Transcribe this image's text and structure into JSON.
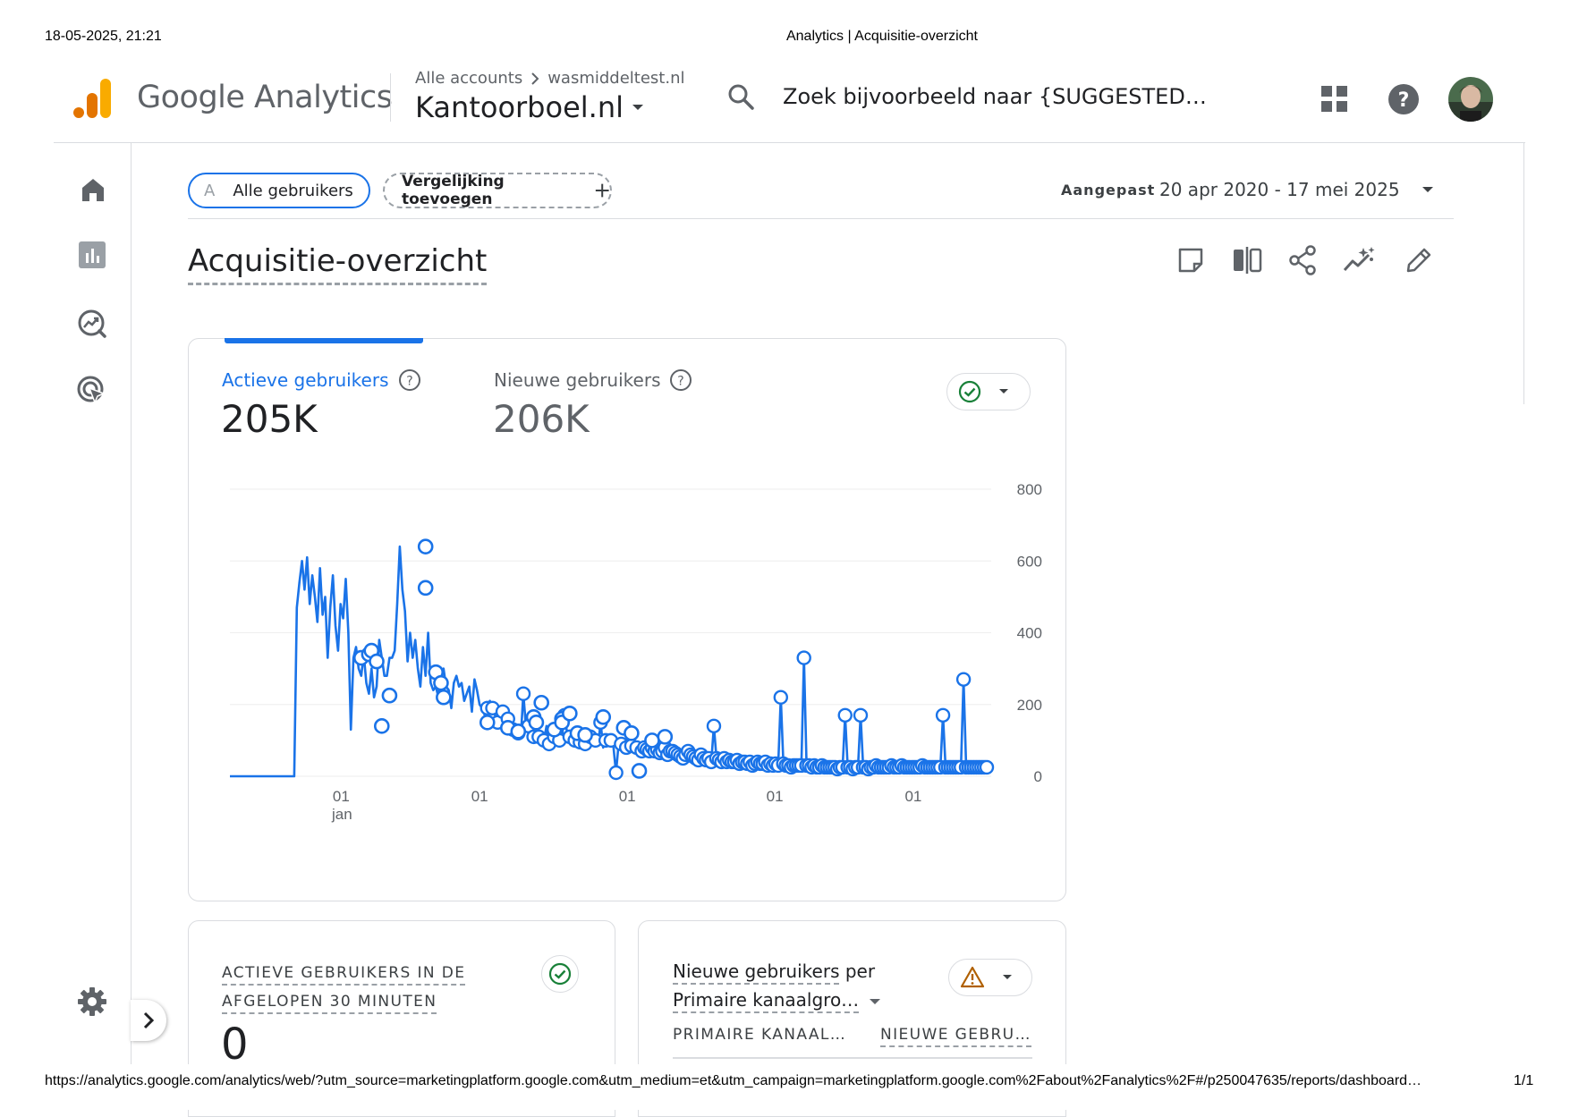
{
  "print_header": {
    "datetime": "18-05-2025, 21:21",
    "doc_title": "Analytics | Acquisitie-overzicht"
  },
  "print_footer": {
    "url": "https://analytics.google.com/analytics/web/?utm_source=marketingplatform.google.com&utm_medium=et&utm_campaign=marketingplatform.google.com%2Fabout%2Fanalytics%2F#/p250047635/reports/dashboard…",
    "page": "1/1"
  },
  "header": {
    "app_name": "Google Analytics",
    "breadcrumb_root": "Alle accounts",
    "breadcrumb_account": "wasmiddeltest.nl",
    "property": "Kantoorboel.nl",
    "search_placeholder": "Zoek bijvoorbeeld naar {SUGGESTED…"
  },
  "filters": {
    "segment_letter": "A",
    "segment_label": "Alle gebruikers",
    "add_comparison": "Vergelijking toevoegen",
    "date_mode": "Aangepast",
    "date_range": "20 apr 2020 - 17 mei 2025"
  },
  "page": {
    "title": "Acquisitie-overzicht"
  },
  "main_card": {
    "metric1_label": "Actieve gebruikers",
    "metric1_value": "205K",
    "metric2_label": "Nieuwe gebruikers",
    "metric2_value": "206K"
  },
  "realtime_card": {
    "title_line1": "ACTIEVE GEBRUIKERS IN DE",
    "title_line2": "AFGELOPEN 30 MINUTEN",
    "value": "0"
  },
  "channel_card": {
    "title_part1": "Nieuwe gebruikers",
    "title_part2": "per",
    "dimension": "Primaire kanaalgro…",
    "col1": "PRIMAIRE KANAAL…",
    "col2": "NIEUWE GEBRU…"
  },
  "colors": {
    "accent": "#1a73e8",
    "line": "#1a73e8",
    "ok": "#188038",
    "warn": "#b06000",
    "ga_orange": "#f9ab00",
    "ga_dark_orange": "#e37400"
  },
  "chart_data": {
    "type": "line",
    "series": [
      {
        "name": "Actieve gebruikers",
        "values": [
          0,
          0,
          0,
          0,
          0,
          0,
          0,
          0,
          0,
          0,
          0,
          0,
          0,
          0,
          0,
          0,
          0,
          0,
          0,
          0,
          0,
          0,
          0,
          0,
          0,
          0,
          470,
          540,
          600,
          520,
          610,
          480,
          560,
          500,
          430,
          580,
          450,
          500,
          330,
          470,
          560,
          420,
          350,
          480,
          440,
          550,
          400,
          130,
          330,
          360,
          300,
          280,
          340,
          260,
          230,
          300,
          220,
          250,
          380,
          330,
          280,
          280,
          330,
          330,
          350,
          480,
          640,
          520,
          460,
          320,
          400,
          330,
          380,
          300,
          250,
          360,
          280,
          400,
          260,
          240,
          250,
          220,
          280,
          300,
          250,
          240,
          190,
          260,
          280,
          250,
          260,
          210,
          230,
          250,
          180,
          270,
          240,
          200,
          190,
          170,
          190,
          210,
          190,
          170,
          150,
          160,
          180,
          140,
          160,
          150,
          130,
          140,
          120,
          110,
          230,
          140,
          140,
          120,
          110,
          130,
          110,
          120,
          100,
          140,
          90,
          120,
          110,
          130,
          100,
          110,
          170,
          120,
          110,
          90,
          100,
          110,
          95,
          100,
          90,
          80,
          110,
          90,
          100,
          85,
          150,
          80,
          100,
          90,
          100,
          80,
          10,
          90,
          90,
          100,
          80,
          75,
          85,
          70,
          80,
          90,
          70,
          80,
          75,
          70,
          80,
          70,
          75,
          65,
          70,
          80,
          60,
          70,
          70,
          65,
          60,
          55,
          50,
          60,
          70,
          60,
          55,
          50,
          45,
          60,
          50,
          45,
          50,
          40,
          140,
          50,
          45,
          40,
          50,
          40,
          45,
          40,
          40,
          45,
          35,
          40,
          40,
          35,
          40,
          30,
          35,
          40,
          35,
          35,
          40,
          30,
          35,
          30,
          35,
          30,
          220,
          35,
          30,
          30,
          25,
          30,
          30,
          30,
          30,
          330,
          30,
          30,
          25,
          30,
          25,
          25,
          30,
          25,
          25,
          25,
          25,
          25,
          20,
          25,
          25,
          170,
          25,
          25,
          20,
          25,
          25,
          170,
          25,
          25,
          20,
          25,
          25,
          30,
          25,
          25,
          25,
          25,
          25,
          30,
          25,
          25,
          25,
          30,
          25,
          25,
          25,
          25,
          25,
          25,
          25,
          30,
          25,
          25,
          25,
          25,
          25,
          25,
          25,
          170,
          25,
          25,
          25,
          25,
          25,
          25,
          25,
          270,
          25,
          25,
          25,
          25,
          25,
          25,
          25,
          25,
          25
        ]
      },
      {
        "name": "Nieuwe gebruikers",
        "points": [
          [
            51,
            330
          ],
          [
            54,
            340
          ],
          [
            55,
            350
          ],
          [
            57,
            320
          ],
          [
            59,
            140
          ],
          [
            62,
            225
          ],
          [
            76,
            640
          ],
          [
            76,
            525
          ],
          [
            80,
            290
          ],
          [
            82,
            260
          ],
          [
            83,
            220
          ],
          [
            100,
            150
          ],
          [
            108,
            135
          ],
          [
            112,
            125
          ],
          [
            118,
            165
          ],
          [
            119,
            150
          ],
          [
            121,
            205
          ],
          [
            126,
            130
          ],
          [
            129,
            160
          ],
          [
            129,
            150
          ],
          [
            132,
            175
          ],
          [
            135,
            120
          ],
          [
            138,
            115
          ],
          [
            145,
            165
          ],
          [
            153,
            135
          ],
          [
            156,
            120
          ],
          [
            159,
            15
          ],
          [
            164,
            100
          ],
          [
            169,
            110
          ]
        ]
      }
    ],
    "x_tick_labels": [
      "01",
      "01",
      "01",
      "01",
      "01"
    ],
    "x_tick_sublabel": "jan",
    "y_ticks": [
      0,
      200,
      400,
      600,
      800
    ],
    "ylim": [
      0,
      800
    ],
    "grid": true,
    "y_axis_side": "right"
  }
}
